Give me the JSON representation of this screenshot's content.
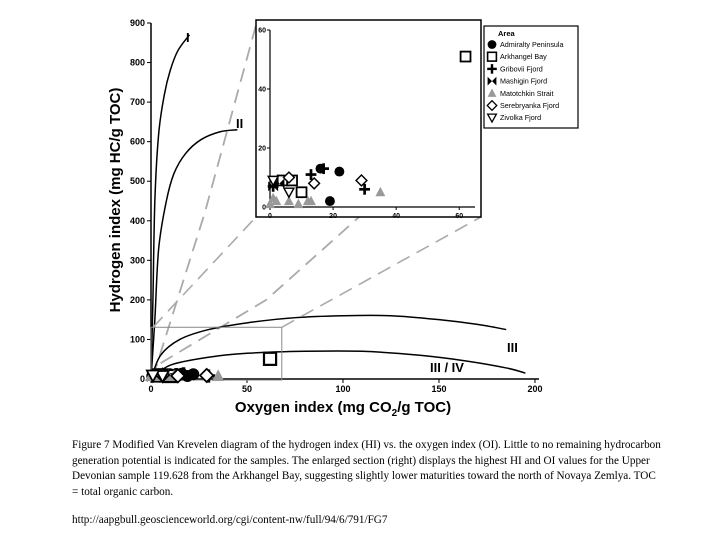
{
  "chart_data": {
    "type": "scatter",
    "xlabel": "Oxygen index (mg CO2/g TOC)",
    "ylabel": "Hydrogen index (mg HC/g TOC)",
    "xlim": [
      0,
      200
    ],
    "ylim": [
      0,
      900
    ],
    "xticks": [
      0,
      50,
      100,
      150,
      200
    ],
    "yticks": [
      0,
      100,
      200,
      300,
      400,
      500,
      600,
      700,
      800,
      900
    ],
    "kerogen_curves": [
      {
        "label": "I",
        "points": [
          [
            0,
            0
          ],
          [
            1,
            200
          ],
          [
            2,
            450
          ],
          [
            4,
            620
          ],
          [
            7,
            720
          ],
          [
            10,
            780
          ],
          [
            14,
            830
          ],
          [
            20,
            870
          ]
        ]
      },
      {
        "label": "II",
        "points": [
          [
            0,
            0
          ],
          [
            2,
            150
          ],
          [
            4,
            330
          ],
          [
            8,
            450
          ],
          [
            12,
            520
          ],
          [
            18,
            570
          ],
          [
            26,
            605
          ],
          [
            36,
            625
          ],
          [
            45,
            630
          ]
        ]
      },
      {
        "label": "III",
        "points": [
          [
            0,
            0
          ],
          [
            5,
            60
          ],
          [
            15,
            100
          ],
          [
            30,
            125
          ],
          [
            50,
            142
          ],
          [
            75,
            155
          ],
          [
            100,
            160
          ],
          [
            125,
            160
          ],
          [
            150,
            150
          ],
          [
            170,
            138
          ],
          [
            185,
            125
          ]
        ]
      },
      {
        "label": "III / IV",
        "points": [
          [
            0,
            0
          ],
          [
            10,
            35
          ],
          [
            30,
            55
          ],
          [
            50,
            65
          ],
          [
            80,
            70
          ],
          [
            110,
            70
          ],
          [
            140,
            60
          ],
          [
            165,
            45
          ],
          [
            185,
            28
          ],
          [
            195,
            15
          ]
        ]
      }
    ],
    "maturity_lines": [
      {
        "points": [
          [
            1,
            5
          ],
          [
            28,
            420
          ],
          [
            55,
            900
          ]
        ]
      },
      {
        "points": [
          [
            5,
            40
          ],
          [
            60,
            200
          ],
          [
            150,
            590
          ]
        ]
      }
    ],
    "enlarged_region": {
      "xlim": [
        0,
        65
      ],
      "ylim": [
        0,
        60
      ]
    },
    "inset": {
      "xticks": [
        0,
        20,
        40,
        60
      ],
      "yticks": [
        0,
        20,
        40,
        60
      ]
    },
    "legend": {
      "title": "Area",
      "position": "top-right",
      "entries": [
        {
          "name": "Admiralty Peninsula",
          "marker": "filled-circle"
        },
        {
          "name": "Arkhangel Bay",
          "marker": "open-square"
        },
        {
          "name": "Gribovii Fjord",
          "marker": "plus"
        },
        {
          "name": "Mashigin Fjord",
          "marker": "bowtie"
        },
        {
          "name": "Matotchkin Strait",
          "marker": "gray-triangle"
        },
        {
          "name": "Serebryanka Fjord",
          "marker": "open-diamond"
        },
        {
          "name": "Zivolka Fjord",
          "marker": "open-down-triangle"
        }
      ]
    },
    "series": [
      {
        "name": "Admiralty Peninsula",
        "marker": "filled-circle",
        "points": [
          [
            16,
            13
          ],
          [
            22,
            12
          ],
          [
            19,
            2
          ]
        ]
      },
      {
        "name": "Arkhangel Bay",
        "marker": "open-square",
        "points": [
          [
            62,
            51
          ],
          [
            4,
            9
          ],
          [
            7,
            9
          ],
          [
            10,
            5
          ]
        ]
      },
      {
        "name": "Gribovii Fjord",
        "marker": "plus",
        "points": [
          [
            17,
            13
          ],
          [
            13,
            11
          ],
          [
            30,
            6
          ],
          [
            1,
            7
          ]
        ]
      },
      {
        "name": "Mashigin Fjord",
        "marker": "bowtie",
        "points": [
          [
            1,
            7
          ],
          [
            3,
            8
          ]
        ]
      },
      {
        "name": "Matotchkin Strait",
        "marker": "gray-triangle",
        "points": [
          [
            0,
            1
          ],
          [
            2,
            2
          ],
          [
            6,
            2
          ],
          [
            9,
            1
          ],
          [
            12,
            2
          ],
          [
            13,
            2
          ],
          [
            35,
            5
          ],
          [
            1,
            3
          ]
        ]
      },
      {
        "name": "Serebryanka Fjord",
        "marker": "open-diamond",
        "points": [
          [
            14,
            8
          ],
          [
            29,
            9
          ],
          [
            6,
            10
          ]
        ]
      },
      {
        "name": "Zivolka Fjord",
        "marker": "open-down-triangle",
        "points": [
          [
            6,
            5
          ],
          [
            1,
            9
          ]
        ]
      }
    ]
  },
  "caption": "Figure 7 Modified Van Krevelen diagram of the hydrogen index (HI) vs. the oxygen index (OI). Little to no remaining hydrocarbon generation potential is indicated for the samples. The enlarged section (right) displays the highest HI and OI values for the Upper Devonian sample 119.628 from the Arkhangel Bay, suggesting slightly lower maturities toward the north of Novaya Zemlya. TOC = total organic carbon.",
  "source_url": "http://aapgbull.geoscienceworld.org/cgi/content-nw/full/94/6/791/FG7"
}
